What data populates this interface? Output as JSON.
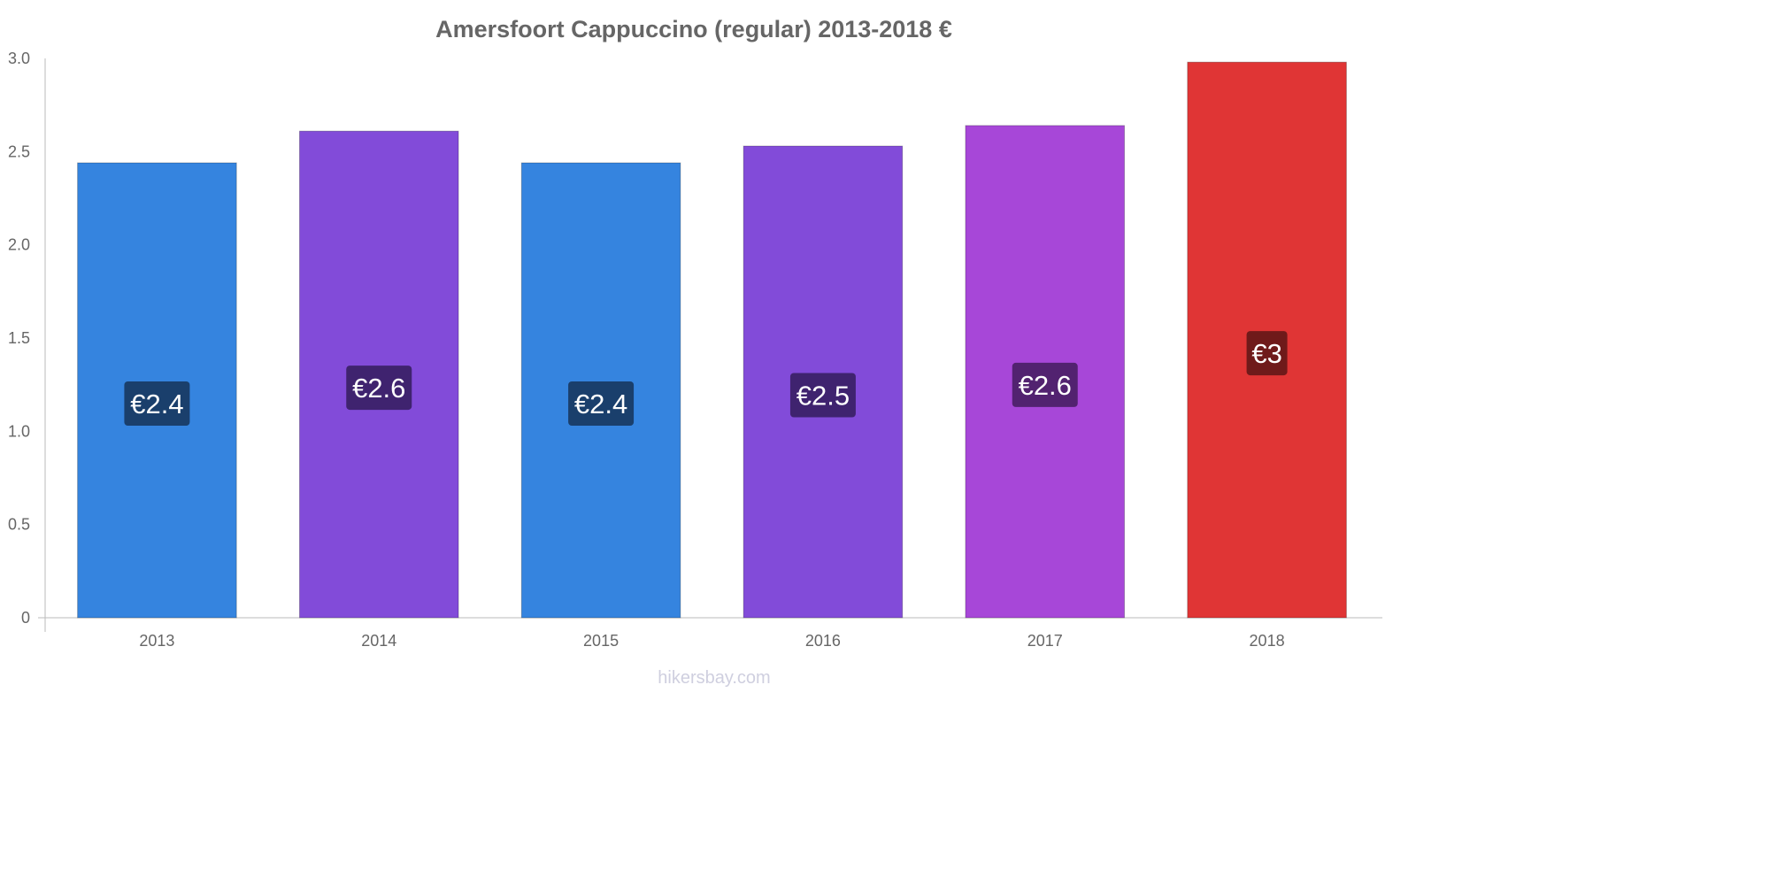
{
  "chart_data": {
    "type": "bar",
    "title": "Amersfoort Cappuccino (regular) 2013-2018 €",
    "categories": [
      "2013",
      "2014",
      "2015",
      "2016",
      "2017",
      "2018"
    ],
    "values": [
      2.44,
      2.61,
      2.44,
      2.53,
      2.64,
      2.98
    ],
    "data_labels": [
      "€2.4",
      "€2.6",
      "€2.4",
      "€2.5",
      "€2.6",
      "€3"
    ],
    "bar_colors": [
      "#3584df",
      "#824bd9",
      "#3584df",
      "#824bd9",
      "#a747d8",
      "#e03535"
    ],
    "label_bg_colors": [
      "#1a3f6c",
      "#3f236f",
      "#1a3f6c",
      "#3f236f",
      "#522270",
      "#6f1a1a"
    ],
    "y_ticks": [
      "0",
      "0.5",
      "1.0",
      "1.5",
      "2.0",
      "2.5",
      "3.0"
    ],
    "ylim": [
      0,
      3.0
    ],
    "xlabel": "",
    "ylabel": "",
    "grid": false,
    "legend": "none"
  },
  "watermark": "hikersbay.com"
}
